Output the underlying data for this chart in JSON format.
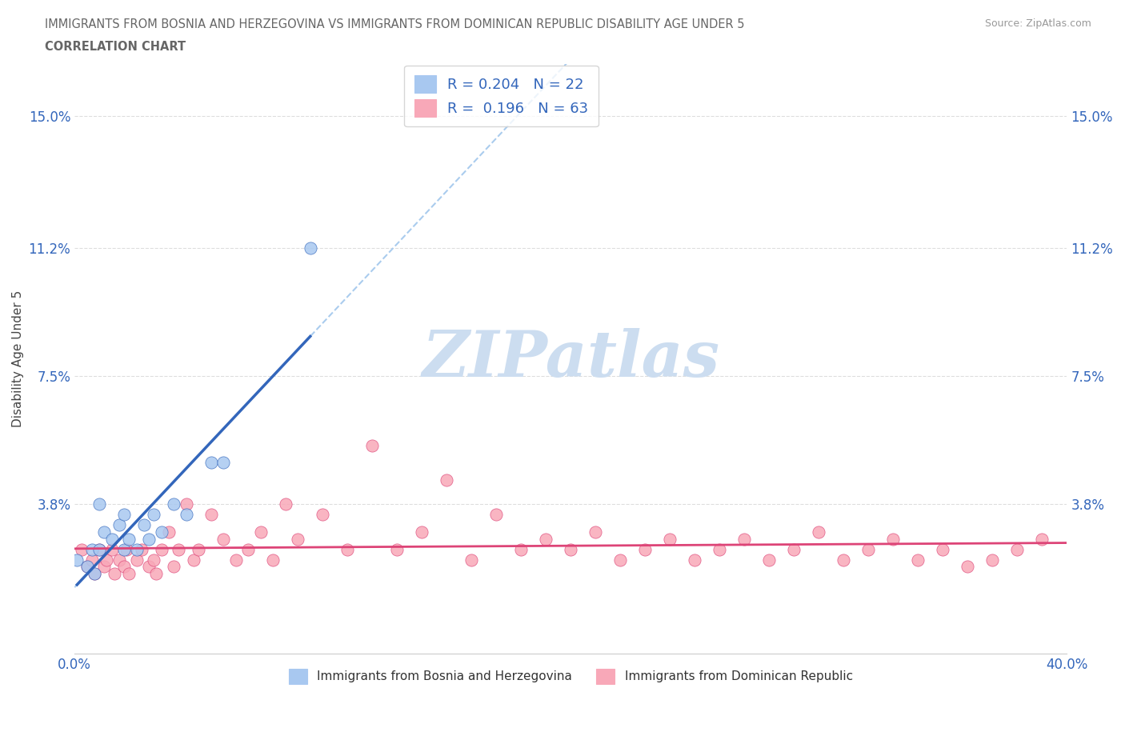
{
  "title_line1": "IMMIGRANTS FROM BOSNIA AND HERZEGOVINA VS IMMIGRANTS FROM DOMINICAN REPUBLIC DISABILITY AGE UNDER 5",
  "title_line2": "CORRELATION CHART",
  "source_text": "Source: ZipAtlas.com",
  "ylabel": "Disability Age Under 5",
  "xlim": [
    0.0,
    0.4
  ],
  "ylim": [
    -0.005,
    0.165
  ],
  "ytick_labels": [
    "3.8%",
    "7.5%",
    "11.2%",
    "15.0%"
  ],
  "ytick_values": [
    0.038,
    0.075,
    0.112,
    0.15
  ],
  "legend_entry1": "R = 0.204   N = 22",
  "legend_entry2": "R =  0.196   N = 63",
  "legend_label1": "Immigrants from Bosnia and Herzegovina",
  "legend_label2": "Immigrants from Dominican Republic",
  "color_bosnia": "#a8c8f0",
  "color_dominican": "#f8a8b8",
  "trendline_color_bosnia": "#3366bb",
  "trendline_color_dominican": "#dd4477",
  "trendline_dashed_color": "#aaccee",
  "watermark_text": "ZIPatlas",
  "watermark_color": "#ccddf0",
  "background_color": "#ffffff",
  "grid_color": "#dddddd",
  "title_color": "#666666",
  "axis_label_color": "#3366bb",
  "bosnia_x": [
    0.001,
    0.005,
    0.007,
    0.008,
    0.01,
    0.01,
    0.012,
    0.015,
    0.018,
    0.02,
    0.02,
    0.022,
    0.025,
    0.028,
    0.03,
    0.032,
    0.035,
    0.04,
    0.045,
    0.055,
    0.06,
    0.095
  ],
  "bosnia_y": [
    0.022,
    0.02,
    0.025,
    0.018,
    0.025,
    0.038,
    0.03,
    0.028,
    0.032,
    0.025,
    0.035,
    0.028,
    0.025,
    0.032,
    0.028,
    0.035,
    0.03,
    0.038,
    0.035,
    0.05,
    0.05,
    0.112
  ],
  "dominican_x": [
    0.003,
    0.005,
    0.007,
    0.008,
    0.01,
    0.012,
    0.013,
    0.015,
    0.016,
    0.018,
    0.02,
    0.021,
    0.022,
    0.025,
    0.027,
    0.03,
    0.032,
    0.033,
    0.035,
    0.038,
    0.04,
    0.042,
    0.045,
    0.048,
    0.05,
    0.055,
    0.06,
    0.065,
    0.07,
    0.075,
    0.08,
    0.085,
    0.09,
    0.1,
    0.11,
    0.12,
    0.13,
    0.14,
    0.15,
    0.16,
    0.17,
    0.18,
    0.19,
    0.2,
    0.21,
    0.22,
    0.23,
    0.24,
    0.25,
    0.26,
    0.27,
    0.28,
    0.29,
    0.3,
    0.31,
    0.32,
    0.33,
    0.34,
    0.35,
    0.36,
    0.37,
    0.38,
    0.39
  ],
  "dominican_y": [
    0.025,
    0.02,
    0.022,
    0.018,
    0.025,
    0.02,
    0.022,
    0.025,
    0.018,
    0.022,
    0.02,
    0.025,
    0.018,
    0.022,
    0.025,
    0.02,
    0.022,
    0.018,
    0.025,
    0.03,
    0.02,
    0.025,
    0.038,
    0.022,
    0.025,
    0.035,
    0.028,
    0.022,
    0.025,
    0.03,
    0.022,
    0.038,
    0.028,
    0.035,
    0.025,
    0.055,
    0.025,
    0.03,
    0.045,
    0.022,
    0.035,
    0.025,
    0.028,
    0.025,
    0.03,
    0.022,
    0.025,
    0.028,
    0.022,
    0.025,
    0.028,
    0.022,
    0.025,
    0.03,
    0.022,
    0.025,
    0.028,
    0.022,
    0.025,
    0.02,
    0.022,
    0.025,
    0.028
  ]
}
